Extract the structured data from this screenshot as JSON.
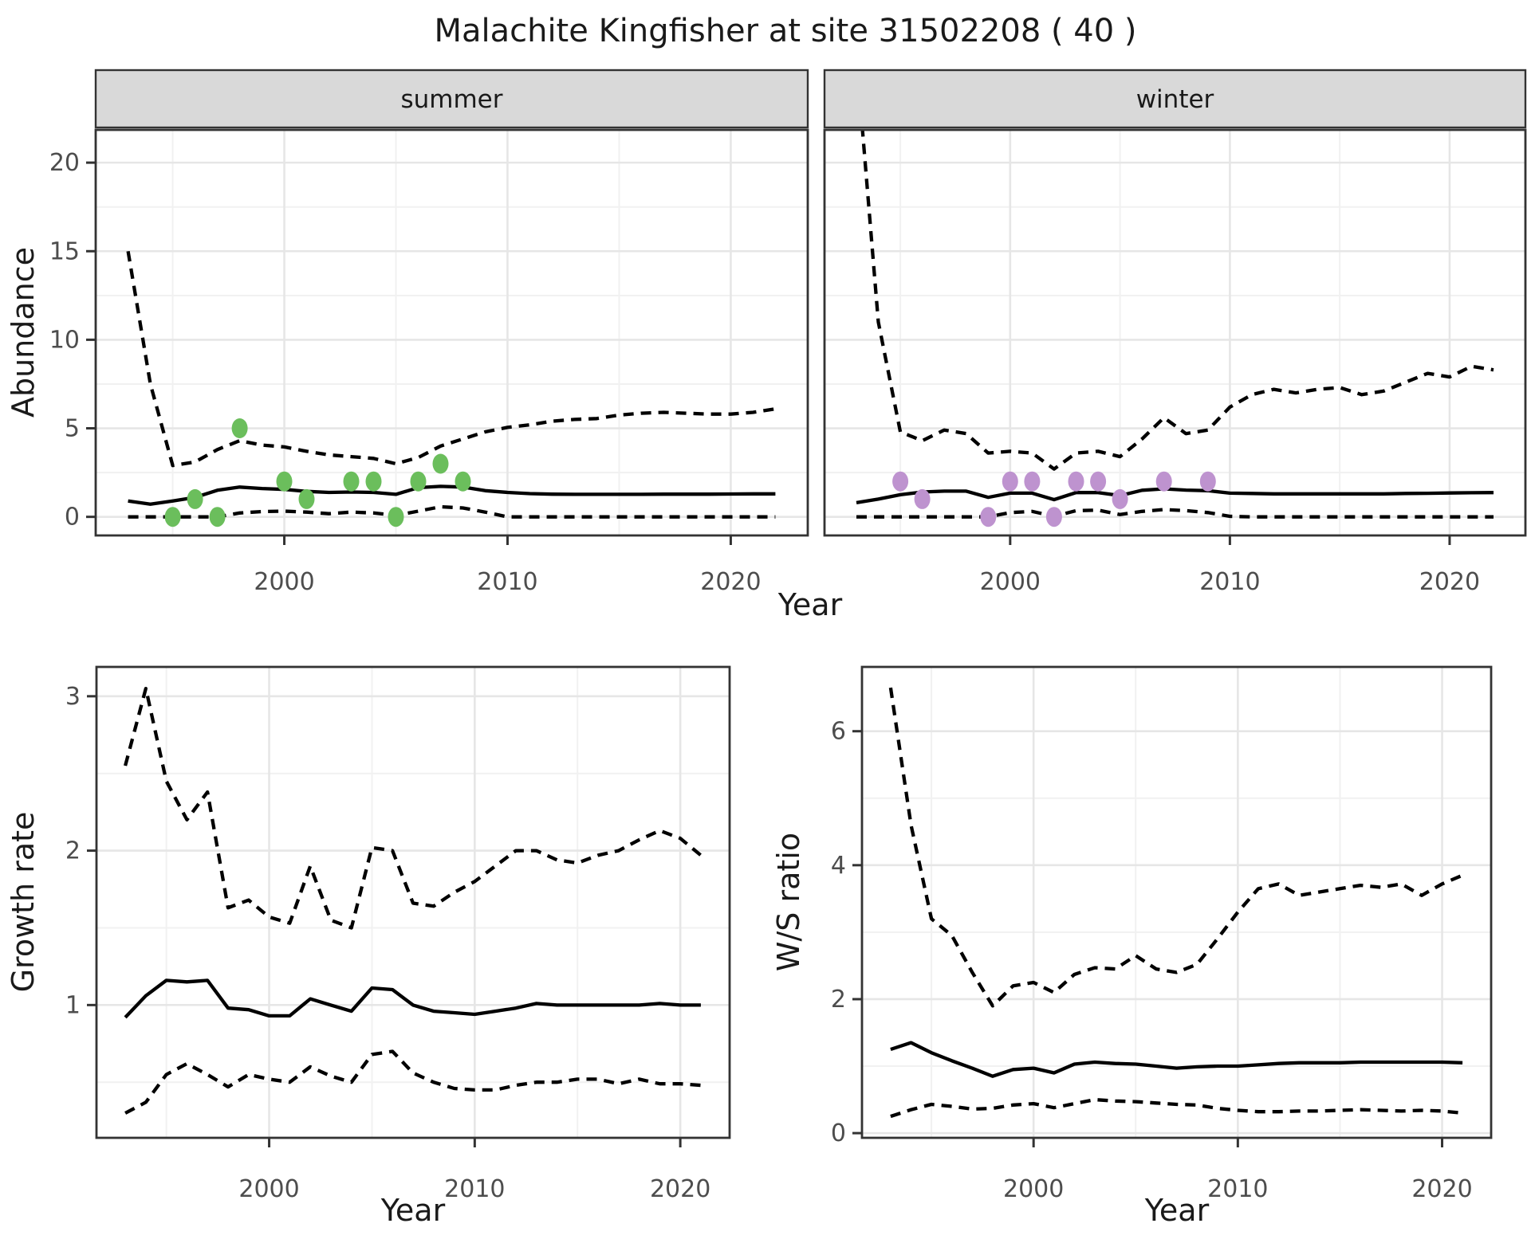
{
  "title": "Malachite Kingfisher at site 31502208 ( 40 )",
  "colors": {
    "summer_points": "#6BBE5C",
    "winter_points": "#BE93CF",
    "line": "#000000",
    "grid_major": "#E6E6E6",
    "grid_minor": "#F1F1F1",
    "strip_bg": "#D9D9D9",
    "panel_border": "#333333",
    "tick_label": "#4D4D4D",
    "axis_title": "#1A1A1A"
  },
  "chart_data": [
    {
      "id": "abundance_summer",
      "type": "line",
      "facet_label": "summer",
      "xlabel": "Year",
      "ylabel": "Abundance",
      "xlim": [
        1991.55,
        2023.45
      ],
      "ylim": [
        -1.05,
        21.85
      ],
      "x_ticks": [
        2000,
        2010,
        2020
      ],
      "x_minor": [
        1995,
        2005,
        2015
      ],
      "y_ticks": [
        0,
        5,
        10,
        15,
        20
      ],
      "y_minor": [
        2.5,
        7.5,
        12.5,
        17.5
      ],
      "legend": "none",
      "years": [
        1993,
        1994,
        1995,
        1996,
        1997,
        1998,
        1999,
        2000,
        2001,
        2002,
        2003,
        2004,
        2005,
        2006,
        2007,
        2008,
        2009,
        2010,
        2011,
        2012,
        2013,
        2014,
        2015,
        2016,
        2017,
        2018,
        2019,
        2020,
        2021,
        2022
      ],
      "series": [
        {
          "name": "upper_95ci",
          "style": "dashed",
          "values": [
            15,
            7.5,
            2.9,
            3.1,
            3.8,
            4.3,
            4.05,
            3.95,
            3.7,
            3.5,
            3.4,
            3.3,
            3.0,
            3.35,
            4.0,
            4.4,
            4.8,
            5.05,
            5.2,
            5.4,
            5.5,
            5.55,
            5.75,
            5.85,
            5.9,
            5.85,
            5.8,
            5.8,
            5.9,
            6.1
          ]
        },
        {
          "name": "median",
          "style": "solid",
          "values": [
            0.9,
            0.72,
            0.9,
            1.1,
            1.5,
            1.68,
            1.6,
            1.55,
            1.44,
            1.38,
            1.4,
            1.38,
            1.27,
            1.65,
            1.72,
            1.68,
            1.48,
            1.38,
            1.31,
            1.28,
            1.27,
            1.27,
            1.27,
            1.27,
            1.28,
            1.28,
            1.28,
            1.29,
            1.3,
            1.3
          ]
        },
        {
          "name": "lower_95ci",
          "style": "dashed",
          "values": [
            0,
            0,
            0,
            0,
            0,
            0.22,
            0.3,
            0.32,
            0.27,
            0.18,
            0.27,
            0.22,
            0.08,
            0.32,
            0.57,
            0.5,
            0.27,
            0,
            0,
            0,
            0,
            0,
            0,
            0,
            0,
            0,
            0,
            0,
            0,
            0
          ]
        }
      ],
      "observations": {
        "color_key": "summer_points",
        "points": [
          [
            1995,
            0
          ],
          [
            1996,
            1
          ],
          [
            1997,
            0
          ],
          [
            1998,
            5
          ],
          [
            2000,
            2
          ],
          [
            2001,
            1
          ],
          [
            2003,
            2
          ],
          [
            2004,
            2
          ],
          [
            2005,
            0
          ],
          [
            2006,
            2
          ],
          [
            2007,
            3
          ],
          [
            2008,
            2
          ]
        ]
      }
    },
    {
      "id": "abundance_winter",
      "type": "line",
      "facet_label": "winter",
      "xlabel": "Year",
      "ylabel": "Abundance",
      "xlim": [
        1991.55,
        2023.45
      ],
      "ylim": [
        -1.05,
        21.85
      ],
      "x_ticks": [
        2000,
        2010,
        2020
      ],
      "x_minor": [
        1995,
        2005,
        2015
      ],
      "y_ticks": [
        0,
        5,
        10,
        15,
        20
      ],
      "y_minor": [
        2.5,
        7.5,
        12.5,
        17.5
      ],
      "legend": "none",
      "years": [
        1993,
        1994,
        1995,
        1996,
        1997,
        1998,
        1999,
        2000,
        2001,
        2002,
        2003,
        2004,
        2005,
        2006,
        2007,
        2008,
        2009,
        2010,
        2011,
        2012,
        2013,
        2014,
        2015,
        2016,
        2017,
        2018,
        2019,
        2020,
        2021,
        2022
      ],
      "series": [
        {
          "name": "upper_95ci",
          "style": "dashed",
          "values": [
            26,
            11,
            4.8,
            4.3,
            4.9,
            4.7,
            3.6,
            3.7,
            3.6,
            2.7,
            3.6,
            3.7,
            3.4,
            4.4,
            5.6,
            4.7,
            4.9,
            6.2,
            6.9,
            7.2,
            7.0,
            7.2,
            7.3,
            6.9,
            7.1,
            7.6,
            8.1,
            7.9,
            8.5,
            8.3
          ]
        },
        {
          "name": "median",
          "style": "solid",
          "values": [
            0.8,
            1.0,
            1.25,
            1.4,
            1.45,
            1.45,
            1.1,
            1.34,
            1.34,
            0.97,
            1.37,
            1.37,
            1.2,
            1.5,
            1.58,
            1.51,
            1.48,
            1.34,
            1.32,
            1.3,
            1.3,
            1.3,
            1.3,
            1.3,
            1.3,
            1.32,
            1.33,
            1.35,
            1.36,
            1.37
          ]
        },
        {
          "name": "lower_95ci",
          "style": "dashed",
          "values": [
            0,
            0,
            0,
            0,
            0,
            0,
            0,
            0.24,
            0.31,
            0.03,
            0.35,
            0.38,
            0.13,
            0.31,
            0.41,
            0.35,
            0.24,
            0.03,
            0,
            0,
            0,
            0,
            0,
            0,
            0,
            0,
            0,
            0,
            0,
            0
          ]
        }
      ],
      "observations": {
        "color_key": "winter_points",
        "points": [
          [
            1995,
            2
          ],
          [
            1996,
            1
          ],
          [
            1999,
            0
          ],
          [
            2000,
            2
          ],
          [
            2001,
            2
          ],
          [
            2002,
            0
          ],
          [
            2003,
            2
          ],
          [
            2004,
            2
          ],
          [
            2005,
            1
          ],
          [
            2007,
            2
          ],
          [
            2009,
            2
          ]
        ]
      }
    },
    {
      "id": "growth_rate",
      "type": "line",
      "facet_label": "",
      "xlabel": "Year",
      "ylabel": "Growth rate",
      "xlim": [
        1991.6,
        2022.4
      ],
      "ylim": [
        0.14,
        3.19
      ],
      "x_ticks": [
        2000,
        2010,
        2020
      ],
      "x_minor": [
        1995,
        2005,
        2015
      ],
      "y_ticks": [
        1,
        2,
        3
      ],
      "y_minor": [
        0.5,
        1.5,
        2.5
      ],
      "legend": "none",
      "years": [
        1993,
        1994,
        1995,
        1996,
        1997,
        1998,
        1999,
        2000,
        2001,
        2002,
        2003,
        2004,
        2005,
        2006,
        2007,
        2008,
        2009,
        2010,
        2011,
        2012,
        2013,
        2014,
        2015,
        2016,
        2017,
        2018,
        2019,
        2020,
        2021
      ],
      "series": [
        {
          "name": "upper_95ci",
          "style": "dashed",
          "values": [
            2.55,
            3.05,
            2.45,
            2.2,
            2.38,
            1.63,
            1.68,
            1.57,
            1.53,
            1.9,
            1.55,
            1.5,
            2.02,
            2.0,
            1.66,
            1.64,
            1.73,
            1.8,
            1.9,
            2.0,
            2.0,
            1.94,
            1.92,
            1.97,
            2.0,
            2.07,
            2.13,
            2.08,
            1.97
          ]
        },
        {
          "name": "median",
          "style": "solid",
          "values": [
            0.92,
            1.06,
            1.16,
            1.15,
            1.16,
            0.98,
            0.97,
            0.93,
            0.93,
            1.04,
            1.0,
            0.96,
            1.11,
            1.1,
            1.0,
            0.96,
            0.95,
            0.94,
            0.96,
            0.98,
            1.01,
            1.0,
            1.0,
            1.0,
            1.0,
            1.0,
            1.01,
            1.0,
            1.0
          ]
        },
        {
          "name": "lower_95ci",
          "style": "dashed",
          "values": [
            0.3,
            0.37,
            0.55,
            0.62,
            0.55,
            0.47,
            0.55,
            0.52,
            0.5,
            0.6,
            0.54,
            0.5,
            0.68,
            0.7,
            0.56,
            0.5,
            0.46,
            0.45,
            0.45,
            0.48,
            0.5,
            0.5,
            0.52,
            0.52,
            0.49,
            0.52,
            0.49,
            0.49,
            0.48
          ]
        }
      ],
      "observations": {
        "color_key": "",
        "points": []
      }
    },
    {
      "id": "ws_ratio",
      "type": "line",
      "facet_label": "",
      "xlabel": "Year",
      "ylabel": "W/S ratio",
      "xlim": [
        1991.6,
        2022.4
      ],
      "ylim": [
        -0.07,
        6.96
      ],
      "x_ticks": [
        2000,
        2010,
        2020
      ],
      "x_minor": [
        1995,
        2005,
        2015
      ],
      "y_ticks": [
        0,
        2,
        4,
        6
      ],
      "y_minor": [
        1,
        3,
        5
      ],
      "legend": "none",
      "years": [
        1993,
        1994,
        1995,
        1996,
        1997,
        1998,
        1999,
        2000,
        2001,
        2002,
        2003,
        2004,
        2005,
        2006,
        2007,
        2008,
        2009,
        2010,
        2011,
        2012,
        2013,
        2014,
        2015,
        2016,
        2017,
        2018,
        2019,
        2020,
        2021
      ],
      "series": [
        {
          "name": "upper_95ci",
          "style": "dashed",
          "values": [
            6.65,
            4.6,
            3.2,
            2.95,
            2.4,
            1.9,
            2.2,
            2.25,
            2.1,
            2.37,
            2.47,
            2.45,
            2.65,
            2.45,
            2.4,
            2.52,
            2.9,
            3.3,
            3.65,
            3.72,
            3.55,
            3.6,
            3.65,
            3.7,
            3.67,
            3.72,
            3.55,
            3.72,
            3.85
          ]
        },
        {
          "name": "median",
          "style": "solid",
          "values": [
            1.25,
            1.35,
            1.2,
            1.08,
            0.97,
            0.85,
            0.95,
            0.97,
            0.9,
            1.03,
            1.06,
            1.04,
            1.03,
            1.0,
            0.97,
            0.99,
            1.0,
            1.0,
            1.02,
            1.04,
            1.05,
            1.05,
            1.05,
            1.06,
            1.06,
            1.06,
            1.06,
            1.06,
            1.05
          ]
        },
        {
          "name": "lower_95ci",
          "style": "dashed",
          "values": [
            0.25,
            0.35,
            0.43,
            0.4,
            0.36,
            0.37,
            0.42,
            0.44,
            0.38,
            0.44,
            0.5,
            0.48,
            0.47,
            0.45,
            0.43,
            0.42,
            0.37,
            0.34,
            0.32,
            0.32,
            0.33,
            0.33,
            0.34,
            0.35,
            0.34,
            0.33,
            0.34,
            0.33,
            0.3
          ]
        }
      ],
      "observations": {
        "color_key": "",
        "points": []
      }
    }
  ]
}
